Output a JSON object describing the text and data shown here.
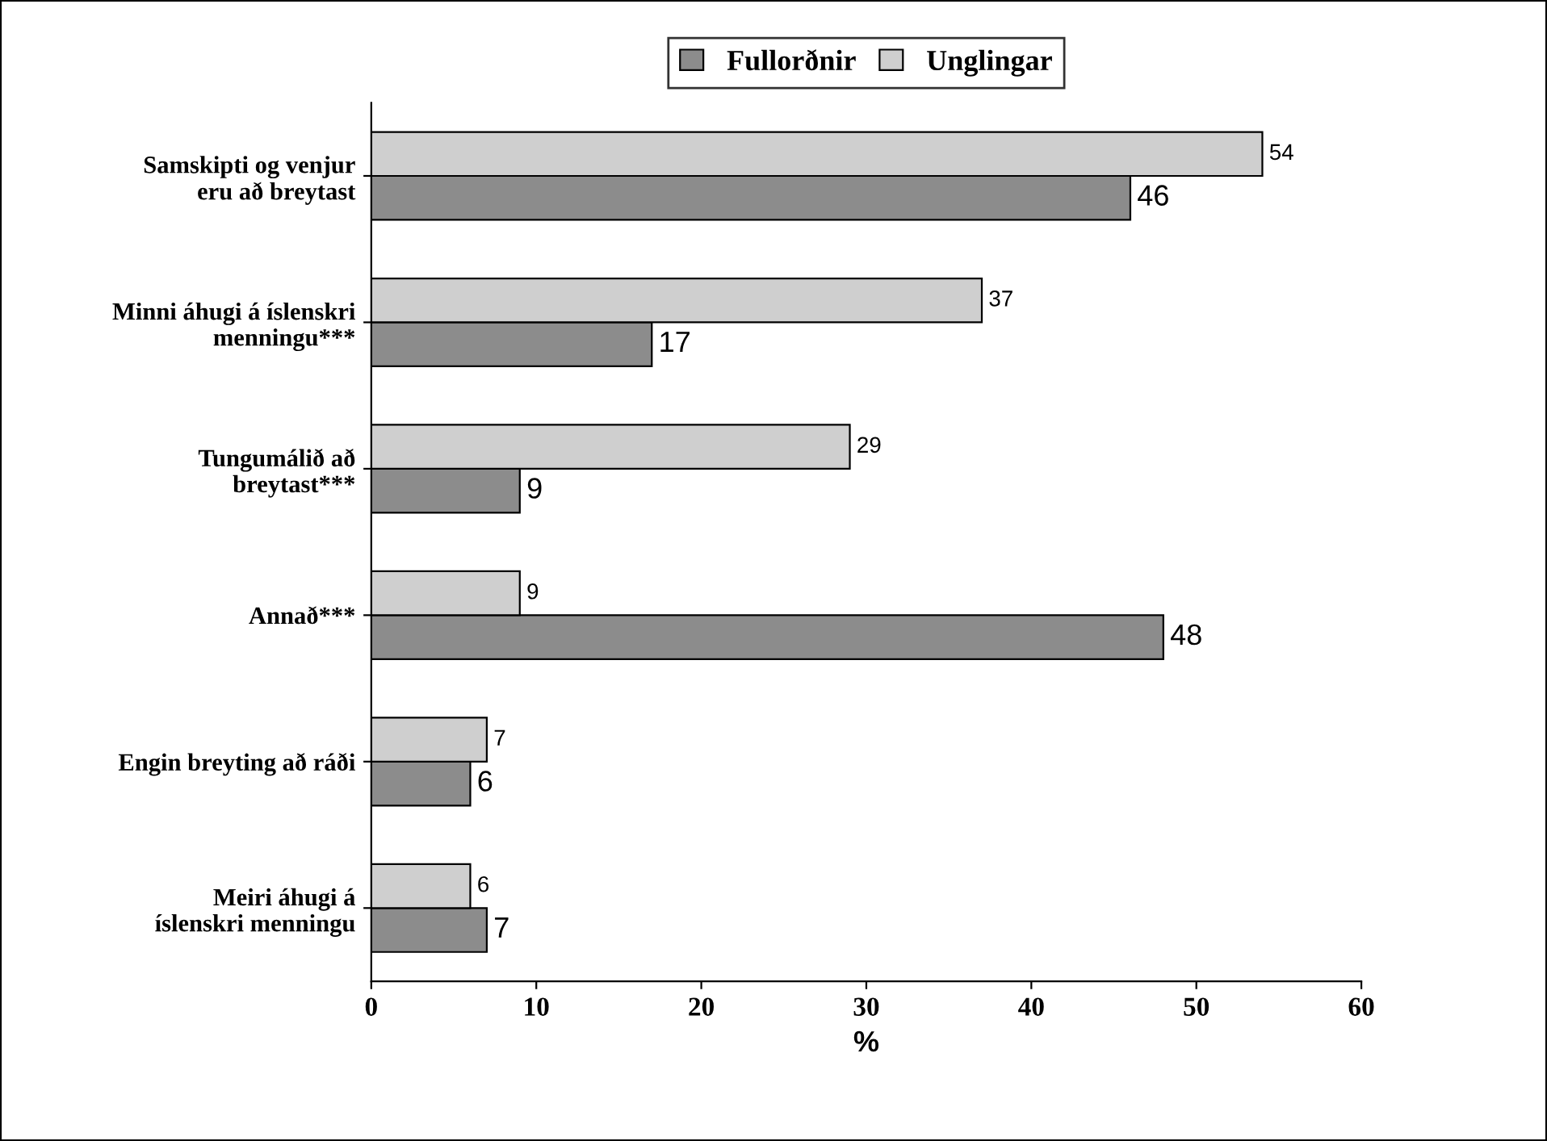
{
  "chart_data": {
    "type": "bar",
    "orientation": "horizontal",
    "xlabel": "%",
    "categories": [
      "Samskipti og venjur\neru að breytast",
      "Minni áhugi á íslenskri\nmenningu***",
      "Tungumálið að\nbreytast***",
      "Annað***",
      "Engin breyting að ráði",
      "Meiri áhugi á\níslenskri menningu"
    ],
    "series": [
      {
        "name": "Fullorðnir",
        "color": "#8c8c8c",
        "values": [
          46,
          17,
          9,
          48,
          6,
          7
        ]
      },
      {
        "name": "Unglingar",
        "color": "#cfcfcf",
        "values": [
          54,
          37,
          29,
          9,
          7,
          6
        ]
      }
    ],
    "xlim": [
      0,
      60
    ],
    "xticks": [
      0,
      10,
      20,
      30,
      40,
      50,
      60
    ],
    "data_labels": true,
    "grid": false,
    "legend": "top"
  }
}
